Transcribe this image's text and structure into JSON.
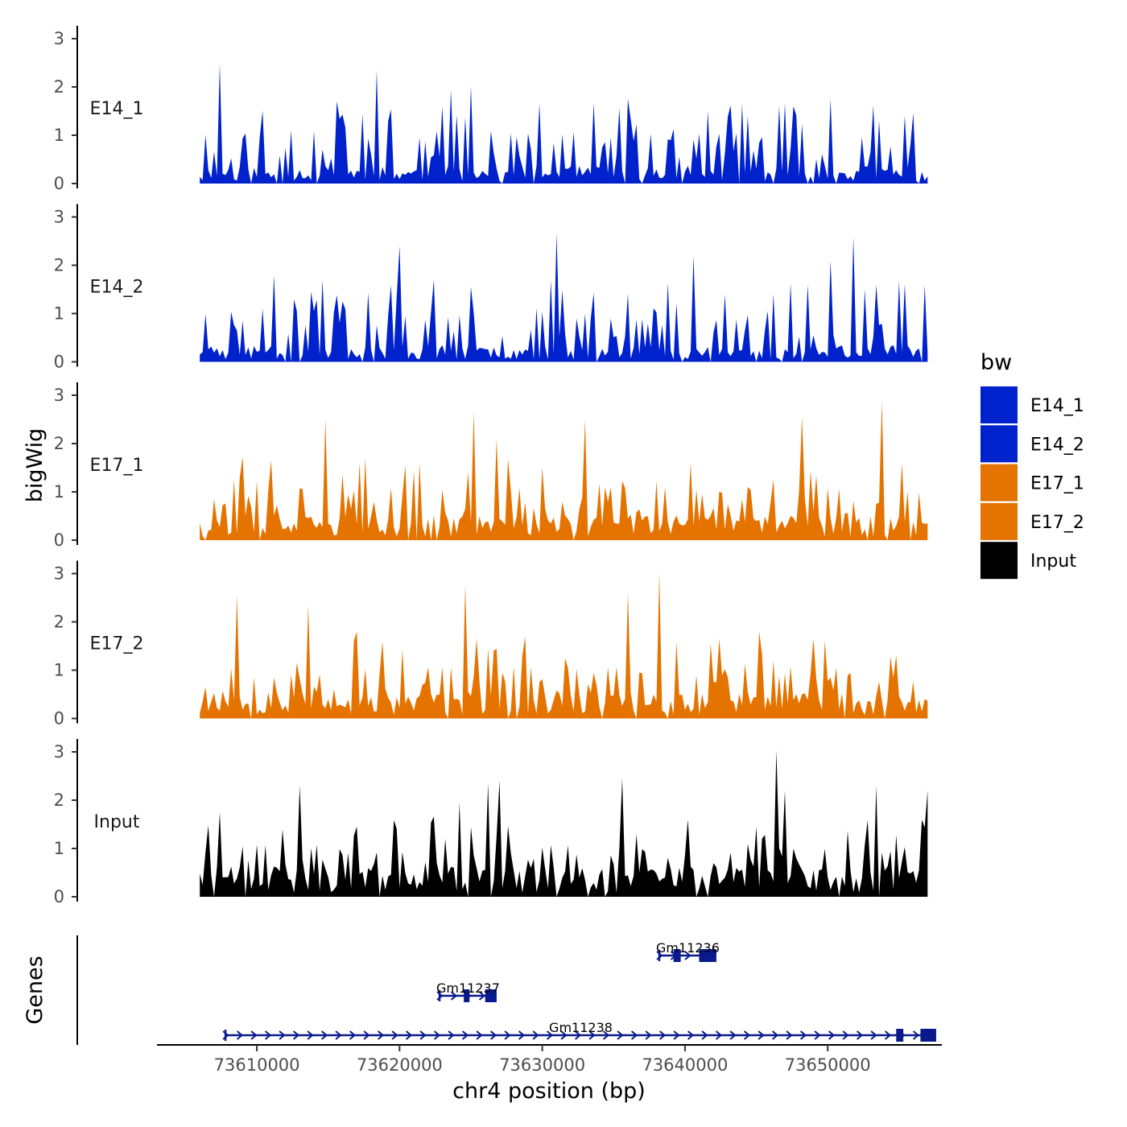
{
  "chart_data": {
    "type": "area",
    "title": "",
    "ylabel": "bigWig",
    "xlabel": "chr4 position (bp)",
    "genes_label": "Genes",
    "ylim": [
      0,
      3.2
    ],
    "y_ticks": [
      "0",
      "1",
      "2",
      "3"
    ],
    "x_range": [
      73603000,
      73658000
    ],
    "x_ticks": [
      {
        "value": 73610000,
        "label": "73610000"
      },
      {
        "value": 73620000,
        "label": "73620000"
      },
      {
        "value": 73630000,
        "label": "73630000"
      },
      {
        "value": 73640000,
        "label": "73640000"
      },
      {
        "value": 73650000,
        "label": "73650000"
      }
    ],
    "legend": {
      "title": "bw",
      "placement": "right",
      "entries": [
        {
          "label": "E14_1",
          "color": "#0022cc"
        },
        {
          "label": "E14_2",
          "color": "#0022cc"
        },
        {
          "label": "E17_1",
          "color": "#e57300"
        },
        {
          "label": "E17_2",
          "color": "#e57300"
        },
        {
          "label": "Input",
          "color": "#000000"
        }
      ]
    },
    "bin_start": 73606000,
    "bin_size": 200,
    "series": [
      {
        "name": "E14_1",
        "color": "#0022cc",
        "seed": 11,
        "base": 0.32,
        "peaks": [
          [
            73607400,
            2.47
          ],
          [
            73615600,
            1.7
          ],
          [
            73618400,
            2.35
          ],
          [
            73623600,
            1.94
          ],
          [
            73625000,
            2.02
          ],
          [
            73636000,
            1.75
          ],
          [
            73641600,
            1.5
          ],
          [
            73644000,
            1.65
          ],
          [
            73646600,
            1.6
          ],
          [
            73650200,
            1.75
          ],
          [
            73653600,
            1.3
          ]
        ]
      },
      {
        "name": "E14_2",
        "color": "#0022cc",
        "seed": 23,
        "base": 0.3,
        "peaks": [
          [
            73611200,
            1.8
          ],
          [
            73616000,
            1.25
          ],
          [
            73620000,
            2.4
          ],
          [
            73622400,
            1.7
          ],
          [
            73625000,
            1.55
          ],
          [
            73631000,
            2.66
          ],
          [
            73640600,
            2.2
          ],
          [
            73648600,
            1.6
          ],
          [
            73650200,
            2.1
          ],
          [
            73651800,
            2.59
          ],
          [
            73657500,
            1.72
          ]
        ]
      },
      {
        "name": "E17_1",
        "color": "#e57300",
        "seed": 37,
        "base": 0.45,
        "peaks": [
          [
            73609000,
            1.72
          ],
          [
            73611000,
            1.65
          ],
          [
            73614800,
            2.5
          ],
          [
            73620400,
            1.55
          ],
          [
            73625200,
            2.65
          ],
          [
            73626800,
            2.1
          ],
          [
            73630000,
            1.5
          ],
          [
            73633000,
            2.5
          ],
          [
            73640400,
            1.6
          ],
          [
            73644400,
            1.1
          ],
          [
            73648200,
            2.55
          ],
          [
            73653800,
            2.88
          ]
        ]
      },
      {
        "name": "E17_2",
        "color": "#e57300",
        "seed": 53,
        "base": 0.45,
        "peaks": [
          [
            73608600,
            2.55
          ],
          [
            73613600,
            2.35
          ],
          [
            73617000,
            1.8
          ],
          [
            73624600,
            2.75
          ],
          [
            73628800,
            1.7
          ],
          [
            73636000,
            2.6
          ],
          [
            73638200,
            3.0
          ],
          [
            73642400,
            1.65
          ],
          [
            73645200,
            1.8
          ],
          [
            73649000,
            1.65
          ]
        ]
      },
      {
        "name": "Input",
        "color": "#000000",
        "seed": 71,
        "base": 0.55,
        "peaks": [
          [
            73607400,
            1.75
          ],
          [
            73613000,
            2.3
          ],
          [
            73624200,
            1.95
          ],
          [
            73626200,
            2.35
          ],
          [
            73627000,
            2.4
          ],
          [
            73635600,
            2.45
          ],
          [
            73646400,
            3.03
          ],
          [
            73647000,
            2.2
          ],
          [
            73653400,
            2.3
          ],
          [
            73657000,
            2.2
          ]
        ]
      }
    ],
    "genes": [
      {
        "name": "Gm11236",
        "start": 73638200,
        "end": 73642200,
        "row": 0,
        "color": "#0a1a8c",
        "exons": [
          [
            73639200,
            73639700
          ],
          [
            73641000,
            73642200
          ]
        ]
      },
      {
        "name": "Gm11237",
        "start": 73622800,
        "end": 73626800,
        "row": 1,
        "color": "#0a1a8c",
        "exons": [
          [
            73624500,
            73624900
          ],
          [
            73626000,
            73626800
          ]
        ]
      },
      {
        "name": "Gm11238",
        "start": 73607800,
        "end": 73657600,
        "row": 2,
        "color": "#0a1a8c",
        "exons": [
          [
            73654800,
            73655300
          ],
          [
            73656500,
            73657600
          ]
        ]
      }
    ]
  }
}
